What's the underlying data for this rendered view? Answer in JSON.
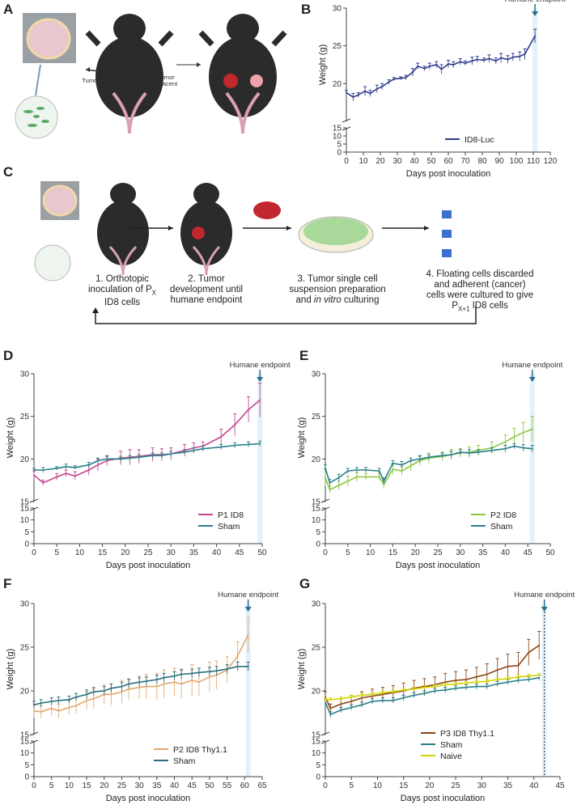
{
  "panels": {
    "A": "A",
    "B": "B",
    "C": "C",
    "D": "D",
    "E": "E",
    "F": "F",
    "G": "G"
  },
  "schematic_A": {
    "tumor": "Tumor",
    "tumor_adjacent": "Tumor adjacent"
  },
  "schematic_C": {
    "step1_line1": "1. Orthotopic",
    "step1_line2": "inoculation of P",
    "step1_sub": "X",
    "step1_line3": "ID8 cells",
    "step2_line1": "2. Tumor",
    "step2_line2": "development until",
    "step2_line3": "humane endpoint",
    "step3_line1": "3. Tumor single cell",
    "step3_line2": "suspension preparation",
    "step3_line3a": "and ",
    "step3_line3b": "in vitro",
    "step3_line3c": " culturing",
    "step4_line1": "4. Floating cells discarded",
    "step4_line2": "and adherent (cancer)",
    "step4_line3": "cells were cultured to give",
    "step4_line4a": "P",
    "step4_line4sub": "X+1",
    "step4_line4b": " ID8 cells"
  },
  "colors": {
    "luc": "#2e3a8c",
    "p1": "#c4458e",
    "sham": "#2a7f8a",
    "p2": "#8cc63f",
    "p2thy": "#e0a96d",
    "shamF": "#2a6f7f",
    "p3": "#8b4513",
    "naive": "#d4d400",
    "arrow": "#2a6f8f",
    "endpoint_band": "#cfe6f5"
  },
  "chart_data": [
    {
      "id": "B",
      "type": "line",
      "xlabel": "Days post inoculation",
      "ylabel": "Weight (g)",
      "xlim": [
        0,
        120
      ],
      "xticks": [
        0,
        10,
        20,
        30,
        40,
        50,
        60,
        70,
        80,
        90,
        100,
        110,
        120
      ],
      "ylim_top": [
        15,
        30
      ],
      "yticks_top": [
        20,
        25,
        30
      ],
      "ylim_bottom": [
        0,
        15
      ],
      "yticks_bottom": [
        0,
        5,
        10,
        15
      ],
      "annotation": "Humane endpoint",
      "endpoint_x": 111,
      "series": [
        {
          "name": "ID8-Luc",
          "color_key": "luc",
          "x": [
            0,
            4,
            7,
            11,
            14,
            18,
            21,
            25,
            28,
            32,
            35,
            39,
            42,
            46,
            49,
            53,
            56,
            60,
            63,
            67,
            70,
            74,
            77,
            81,
            84,
            88,
            91,
            95,
            98,
            102,
            105,
            111
          ],
          "y": [
            18.8,
            18.2,
            18.5,
            19.0,
            18.7,
            19.3,
            19.6,
            20.2,
            20.6,
            20.7,
            20.8,
            21.5,
            22.3,
            22.0,
            22.3,
            22.5,
            21.9,
            22.6,
            22.5,
            22.9,
            22.7,
            23.0,
            23.2,
            23.1,
            23.3,
            23.0,
            23.4,
            23.2,
            23.5,
            23.6,
            23.9,
            26.3
          ],
          "err": [
            0.3,
            0.5,
            0.3,
            0.6,
            0.4,
            0.5,
            0.4,
            0.3,
            0.2,
            0.2,
            0.3,
            0.5,
            0.4,
            0.3,
            0.4,
            0.4,
            0.6,
            0.5,
            0.4,
            0.4,
            0.3,
            0.5,
            0.4,
            0.3,
            0.5,
            0.4,
            0.6,
            0.5,
            0.5,
            0.6,
            0.7,
            0.9
          ]
        }
      ]
    },
    {
      "id": "D",
      "type": "line",
      "xlabel": "Days post inoculation",
      "ylabel": "Weight (g)",
      "xlim": [
        0,
        50
      ],
      "xticks": [
        0,
        5,
        10,
        15,
        20,
        25,
        30,
        35,
        40,
        45,
        50
      ],
      "ylim_top": [
        15,
        30
      ],
      "yticks_top": [
        15,
        20,
        25,
        30
      ],
      "ylim_bottom": [
        0,
        15
      ],
      "yticks_bottom": [
        0,
        5,
        10,
        15
      ],
      "annotation": "Humane endpoint",
      "endpoint_x": 49.5,
      "series": [
        {
          "name": "P1 ID8",
          "color_key": "p1",
          "x": [
            0,
            2,
            5,
            7,
            9,
            12,
            14,
            16,
            19,
            21,
            23,
            26,
            28,
            30,
            33,
            35,
            37,
            41,
            44,
            47,
            49.5
          ],
          "y": [
            18.1,
            17.2,
            17.9,
            18.3,
            18.0,
            18.7,
            19.3,
            19.8,
            20.1,
            20.2,
            20.3,
            20.5,
            20.5,
            20.6,
            21.0,
            21.3,
            21.5,
            22.6,
            24.0,
            25.8,
            26.9
          ],
          "err": [
            0.5,
            0.3,
            0.4,
            0.4,
            0.5,
            0.6,
            0.7,
            0.6,
            0.8,
            0.9,
            0.8,
            0.8,
            0.7,
            0.7,
            0.7,
            0.6,
            0.5,
            0.9,
            1.3,
            1.5,
            2.0
          ]
        },
        {
          "name": "Sham",
          "color_key": "sham",
          "x": [
            0,
            2,
            5,
            7,
            9,
            12,
            14,
            16,
            19,
            21,
            23,
            26,
            28,
            30,
            33,
            35,
            37,
            41,
            44,
            47,
            49.5
          ],
          "y": [
            18.7,
            18.7,
            18.9,
            19.1,
            19.0,
            19.3,
            19.8,
            20.0,
            20.0,
            20.1,
            20.2,
            20.4,
            20.4,
            20.6,
            20.8,
            21.0,
            21.2,
            21.4,
            21.6,
            21.7,
            21.8
          ],
          "err": [
            0.2,
            0.3,
            0.2,
            0.3,
            0.2,
            0.3,
            0.3,
            0.3,
            0.3,
            0.3,
            0.3,
            0.3,
            0.3,
            0.3,
            0.3,
            0.3,
            0.3,
            0.3,
            0.3,
            0.3,
            0.3
          ]
        }
      ]
    },
    {
      "id": "E",
      "type": "line",
      "xlabel": "Days post inoculation",
      "ylabel": "Weight (g)",
      "xlim": [
        0,
        50
      ],
      "xticks": [
        0,
        5,
        10,
        15,
        20,
        25,
        30,
        35,
        40,
        45,
        50
      ],
      "ylim_top": [
        15,
        30
      ],
      "yticks_top": [
        15,
        20,
        25,
        30
      ],
      "ylim_bottom": [
        0,
        15
      ],
      "yticks_bottom": [
        0,
        5,
        10,
        15
      ],
      "annotation": "Humane endpoint",
      "endpoint_x": 46,
      "series": [
        {
          "name": "P2 ID8",
          "color_key": "p2",
          "x": [
            0,
            1,
            3,
            5,
            7,
            9,
            12,
            13,
            15,
            17,
            19,
            21,
            23,
            26,
            28,
            30,
            32,
            34,
            37,
            40,
            42,
            44,
            46
          ],
          "y": [
            17.8,
            16.4,
            16.9,
            17.4,
            17.9,
            17.9,
            17.9,
            17.0,
            18.8,
            18.6,
            19.2,
            19.8,
            20.1,
            20.3,
            20.5,
            20.7,
            20.8,
            21.0,
            21.3,
            22.0,
            22.6,
            23.1,
            23.5
          ],
          "err": [
            1.0,
            0.4,
            0.5,
            0.6,
            0.5,
            0.4,
            0.4,
            0.5,
            0.6,
            0.5,
            0.6,
            0.5,
            0.6,
            0.5,
            0.6,
            0.5,
            0.6,
            0.6,
            0.7,
            0.8,
            1.0,
            1.2,
            1.5
          ]
        },
        {
          "name": "Sham",
          "color_key": "sham",
          "x": [
            0,
            1,
            3,
            5,
            7,
            9,
            12,
            13,
            15,
            17,
            19,
            21,
            23,
            26,
            28,
            30,
            32,
            34,
            37,
            40,
            42,
            44,
            46
          ],
          "y": [
            18.9,
            17.2,
            17.8,
            18.6,
            18.7,
            18.7,
            18.6,
            17.4,
            19.5,
            19.3,
            19.8,
            20.0,
            20.2,
            20.4,
            20.5,
            20.8,
            20.7,
            20.8,
            21.0,
            21.2,
            21.5,
            21.3,
            21.2
          ],
          "err": [
            0.4,
            0.4,
            0.4,
            0.3,
            0.3,
            0.3,
            0.3,
            0.4,
            0.3,
            0.4,
            0.3,
            0.4,
            0.3,
            0.3,
            0.4,
            0.3,
            0.4,
            0.3,
            0.3,
            0.4,
            0.3,
            0.4,
            0.4
          ]
        }
      ]
    },
    {
      "id": "F",
      "type": "line",
      "xlabel": "Days post inoculation",
      "ylabel": "Weight (g)",
      "xlim": [
        0,
        65
      ],
      "xticks": [
        0,
        5,
        10,
        15,
        20,
        25,
        30,
        35,
        40,
        45,
        50,
        55,
        60,
        65
      ],
      "ylim_top": [
        15,
        30
      ],
      "yticks_top": [
        15,
        20,
        25,
        30
      ],
      "ylim_bottom": [
        0,
        15
      ],
      "yticks_bottom": [
        0,
        5,
        10,
        15
      ],
      "annotation": "Humane endpoint",
      "endpoint_x": 61,
      "series": [
        {
          "name": "P2 ID8 Thy1.1",
          "color_key": "p2thy",
          "x": [
            0,
            2,
            5,
            7,
            10,
            12,
            15,
            17,
            20,
            22,
            25,
            27,
            30,
            32,
            35,
            37,
            40,
            42,
            45,
            47,
            50,
            52,
            55,
            58,
            61
          ],
          "y": [
            17.7,
            17.6,
            18.0,
            17.7,
            18.1,
            18.3,
            18.9,
            19.1,
            19.6,
            19.6,
            19.9,
            20.2,
            20.4,
            20.5,
            20.5,
            20.8,
            21.0,
            20.8,
            21.2,
            21.0,
            21.6,
            21.8,
            22.4,
            24.0,
            26.4
          ],
          "err": [
            0.8,
            0.7,
            0.8,
            0.8,
            0.8,
            0.9,
            1.0,
            1.1,
            1.1,
            1.2,
            1.3,
            1.2,
            1.3,
            1.4,
            1.5,
            1.6,
            1.6,
            1.7,
            1.8,
            1.6,
            1.7,
            1.6,
            1.5,
            1.6,
            2.0
          ]
        },
        {
          "name": "Sham",
          "color_key": "shamF",
          "x": [
            0,
            2,
            5,
            7,
            10,
            12,
            15,
            17,
            20,
            22,
            25,
            27,
            30,
            32,
            35,
            37,
            40,
            42,
            45,
            47,
            50,
            52,
            55,
            58,
            61
          ],
          "y": [
            18.4,
            18.6,
            18.8,
            18.9,
            19.0,
            19.3,
            19.6,
            19.9,
            20.0,
            20.3,
            20.5,
            20.8,
            21.0,
            21.1,
            21.3,
            21.5,
            21.7,
            21.9,
            22.0,
            22.1,
            22.2,
            22.3,
            22.5,
            22.8,
            22.8
          ],
          "err": [
            0.4,
            0.4,
            0.4,
            0.4,
            0.4,
            0.4,
            0.5,
            0.5,
            0.5,
            0.5,
            0.5,
            0.5,
            0.5,
            0.5,
            0.5,
            0.5,
            0.5,
            0.5,
            0.5,
            0.5,
            0.5,
            0.5,
            0.5,
            0.5,
            0.5
          ]
        }
      ]
    },
    {
      "id": "G",
      "type": "line",
      "xlabel": "Days post inoculation",
      "ylabel": "Weight (g)",
      "xlim": [
        0,
        45
      ],
      "xticks": [
        0,
        5,
        10,
        15,
        20,
        25,
        30,
        35,
        40,
        45
      ],
      "ylim_top": [
        15,
        30
      ],
      "yticks_top": [
        15,
        20,
        25,
        30
      ],
      "ylim_bottom": [
        0,
        15
      ],
      "yticks_bottom": [
        0,
        5,
        10,
        15
      ],
      "annotation": "Humane endpoint",
      "endpoint_x": 42,
      "series": [
        {
          "name": "P3 ID8 Thy1.1",
          "color_key": "p3",
          "x": [
            0,
            1,
            3,
            5,
            7,
            9,
            11,
            13,
            15,
            17,
            19,
            21,
            23,
            25,
            27,
            29,
            31,
            33,
            35,
            37,
            39,
            41
          ],
          "y": [
            19.3,
            18.0,
            18.5,
            18.8,
            19.2,
            19.4,
            19.6,
            19.8,
            20.0,
            20.3,
            20.5,
            20.7,
            21.0,
            21.2,
            21.3,
            21.6,
            21.9,
            22.4,
            22.8,
            22.9,
            24.4,
            25.2
          ],
          "err": [
            0.6,
            0.5,
            0.6,
            0.7,
            0.7,
            0.8,
            0.8,
            0.8,
            0.9,
            0.9,
            0.9,
            0.9,
            1.0,
            1.0,
            1.1,
            1.1,
            1.2,
            1.3,
            1.4,
            1.5,
            1.5,
            1.6
          ]
        },
        {
          "name": "Sham",
          "color_key": "sham",
          "x": [
            0,
            1,
            3,
            5,
            7,
            9,
            11,
            13,
            15,
            17,
            19,
            21,
            23,
            25,
            27,
            29,
            31,
            33,
            35,
            37,
            39,
            41
          ],
          "y": [
            18.7,
            17.3,
            17.8,
            18.1,
            18.4,
            18.8,
            18.9,
            18.9,
            19.2,
            19.5,
            19.7,
            20.0,
            20.1,
            20.3,
            20.4,
            20.5,
            20.5,
            20.8,
            21.0,
            21.2,
            21.3,
            21.5
          ],
          "err": [
            0.3,
            0.3,
            0.3,
            0.3,
            0.3,
            0.3,
            0.3,
            0.3,
            0.3,
            0.3,
            0.3,
            0.3,
            0.3,
            0.3,
            0.3,
            0.3,
            0.3,
            0.3,
            0.3,
            0.3,
            0.3,
            0.3
          ]
        },
        {
          "name": "Naive",
          "color_key": "naive",
          "x": [
            0,
            1,
            3,
            5,
            7,
            9,
            11,
            13,
            15,
            17,
            19,
            21,
            23,
            25,
            27,
            29,
            31,
            33,
            35,
            37,
            39,
            41
          ],
          "y": [
            19.0,
            19.0,
            19.1,
            19.3,
            19.5,
            19.6,
            19.8,
            19.9,
            20.1,
            20.2,
            20.4,
            20.5,
            20.7,
            20.8,
            20.9,
            21.0,
            21.1,
            21.3,
            21.4,
            21.6,
            21.7,
            21.8
          ],
          "err": [
            0.2,
            0.2,
            0.2,
            0.2,
            0.2,
            0.2,
            0.2,
            0.2,
            0.2,
            0.2,
            0.2,
            0.2,
            0.2,
            0.2,
            0.2,
            0.2,
            0.2,
            0.2,
            0.2,
            0.2,
            0.2,
            0.2
          ]
        }
      ]
    }
  ]
}
